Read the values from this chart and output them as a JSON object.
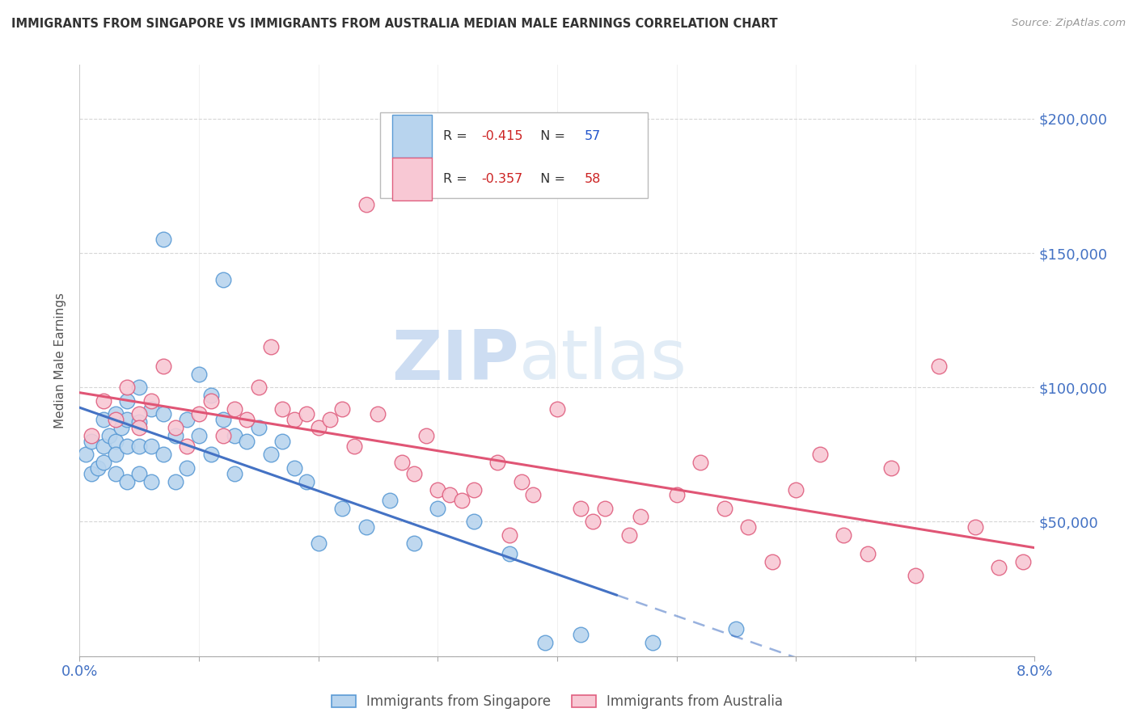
{
  "title": "IMMIGRANTS FROM SINGAPORE VS IMMIGRANTS FROM AUSTRALIA MEDIAN MALE EARNINGS CORRELATION CHART",
  "source": "Source: ZipAtlas.com",
  "ylabel": "Median Male Earnings",
  "xlim": [
    0.0,
    0.08
  ],
  "ylim": [
    0,
    220000
  ],
  "yticks": [
    0,
    50000,
    100000,
    150000,
    200000
  ],
  "ytick_labels": [
    "",
    "$50,000",
    "$100,000",
    "$150,000",
    "$200,000"
  ],
  "singapore_color": "#b8d4ee",
  "singapore_edge_color": "#5b9bd5",
  "australia_color": "#f8c8d4",
  "australia_edge_color": "#e06080",
  "line_singapore_color": "#4472c4",
  "line_australia_color": "#e05575",
  "r_singapore": -0.415,
  "n_singapore": 57,
  "r_australia": -0.357,
  "n_australia": 58,
  "watermark_zip": "ZIP",
  "watermark_atlas": "atlas",
  "background_color": "#ffffff",
  "singapore_x": [
    0.0005,
    0.001,
    0.001,
    0.0015,
    0.002,
    0.002,
    0.002,
    0.0025,
    0.003,
    0.003,
    0.003,
    0.003,
    0.0035,
    0.004,
    0.004,
    0.004,
    0.004,
    0.005,
    0.005,
    0.005,
    0.005,
    0.006,
    0.006,
    0.006,
    0.007,
    0.007,
    0.007,
    0.008,
    0.008,
    0.009,
    0.009,
    0.01,
    0.01,
    0.011,
    0.011,
    0.012,
    0.012,
    0.013,
    0.013,
    0.014,
    0.015,
    0.016,
    0.017,
    0.018,
    0.019,
    0.02,
    0.022,
    0.024,
    0.026,
    0.028,
    0.03,
    0.033,
    0.036,
    0.039,
    0.042,
    0.048,
    0.055
  ],
  "singapore_y": [
    75000,
    80000,
    68000,
    70000,
    88000,
    78000,
    72000,
    82000,
    90000,
    80000,
    75000,
    68000,
    85000,
    95000,
    88000,
    78000,
    65000,
    100000,
    87000,
    78000,
    68000,
    92000,
    78000,
    65000,
    155000,
    90000,
    75000,
    82000,
    65000,
    88000,
    70000,
    105000,
    82000,
    97000,
    75000,
    140000,
    88000,
    82000,
    68000,
    80000,
    85000,
    75000,
    80000,
    70000,
    65000,
    42000,
    55000,
    48000,
    58000,
    42000,
    55000,
    50000,
    38000,
    5000,
    8000,
    5000,
    10000
  ],
  "australia_x": [
    0.001,
    0.002,
    0.003,
    0.004,
    0.005,
    0.005,
    0.006,
    0.007,
    0.008,
    0.009,
    0.01,
    0.011,
    0.012,
    0.013,
    0.014,
    0.015,
    0.016,
    0.017,
    0.018,
    0.019,
    0.02,
    0.021,
    0.022,
    0.023,
    0.024,
    0.025,
    0.027,
    0.028,
    0.029,
    0.03,
    0.031,
    0.032,
    0.033,
    0.035,
    0.036,
    0.037,
    0.038,
    0.04,
    0.042,
    0.043,
    0.044,
    0.046,
    0.047,
    0.05,
    0.052,
    0.054,
    0.056,
    0.058,
    0.06,
    0.062,
    0.064,
    0.066,
    0.068,
    0.07,
    0.072,
    0.075,
    0.077,
    0.079
  ],
  "australia_y": [
    82000,
    95000,
    88000,
    100000,
    90000,
    85000,
    95000,
    108000,
    85000,
    78000,
    90000,
    95000,
    82000,
    92000,
    88000,
    100000,
    115000,
    92000,
    88000,
    90000,
    85000,
    88000,
    92000,
    78000,
    168000,
    90000,
    72000,
    68000,
    82000,
    62000,
    60000,
    58000,
    62000,
    72000,
    45000,
    65000,
    60000,
    92000,
    55000,
    50000,
    55000,
    45000,
    52000,
    60000,
    72000,
    55000,
    48000,
    35000,
    62000,
    75000,
    45000,
    38000,
    70000,
    30000,
    108000,
    48000,
    33000,
    35000
  ]
}
